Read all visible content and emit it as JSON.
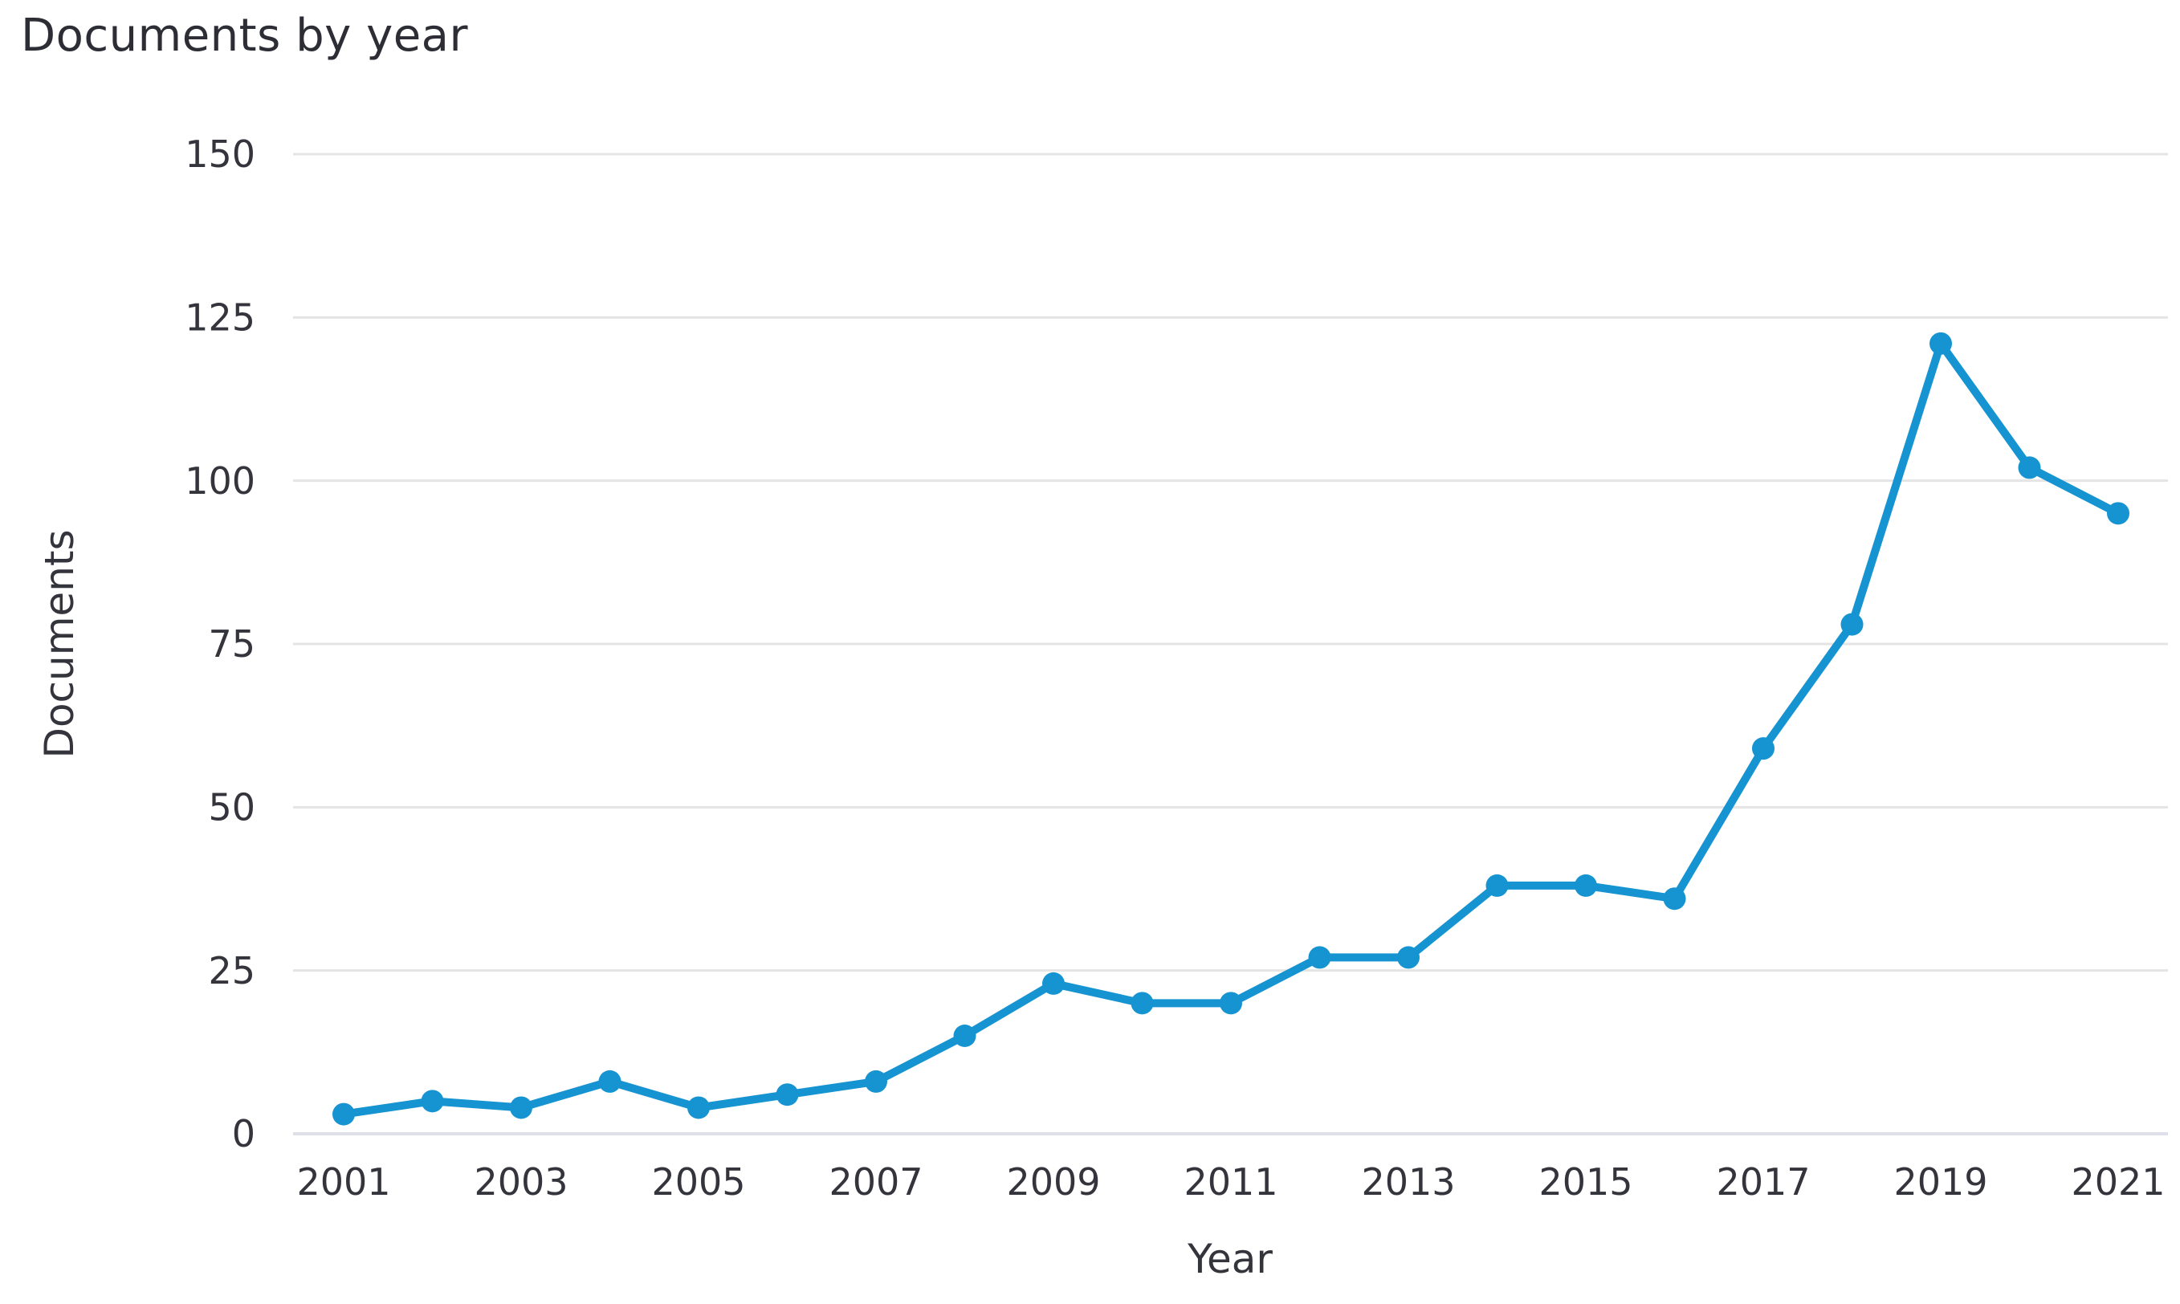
{
  "chart_data": {
    "type": "line",
    "title": "Documents by year",
    "xlabel": "Year",
    "ylabel": "Documents",
    "x": [
      2001,
      2002,
      2003,
      2004,
      2005,
      2006,
      2007,
      2008,
      2009,
      2010,
      2011,
      2012,
      2013,
      2014,
      2015,
      2016,
      2017,
      2018,
      2019,
      2020,
      2021
    ],
    "series": [
      {
        "name": "Documents",
        "values": [
          3,
          5,
          4,
          8,
          4,
          6,
          8,
          15,
          23,
          20,
          20,
          27,
          27,
          38,
          38,
          36,
          59,
          78,
          121,
          102,
          95
        ]
      }
    ],
    "ylim": [
      0,
      150
    ],
    "yticks": [
      0,
      25,
      50,
      75,
      100,
      125,
      150
    ],
    "xticks": [
      2001,
      2003,
      2005,
      2007,
      2009,
      2011,
      2013,
      2015,
      2017,
      2019,
      2021
    ],
    "grid": "horizontal",
    "legend_position": "none",
    "colors": {
      "line": "#1693d1",
      "marker": "#1693d1",
      "grid": "#e4e4e4",
      "zero_line": "#dfdfe9",
      "text": "#34343c",
      "background": "#ffffff"
    }
  }
}
